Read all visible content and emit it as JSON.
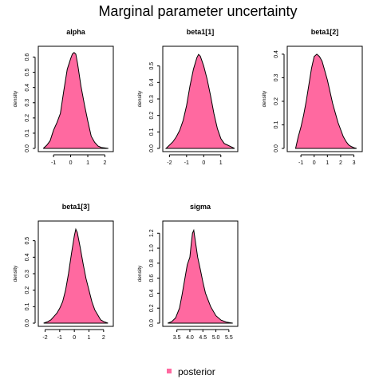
{
  "title": "Marginal parameter uncertainty",
  "legend": {
    "label": "posterior",
    "color": "#FF69A0"
  },
  "chart_data": [
    {
      "type": "area",
      "title": "alpha",
      "ylabel": "density",
      "xlim": [
        -1.75,
        2.35
      ],
      "ylim": [
        0,
        0.65
      ],
      "xticks": [
        -1,
        0,
        1,
        2
      ],
      "xtick_labels": [
        "-1",
        "0",
        "1",
        "2"
      ],
      "yticks": [
        0,
        0.1,
        0.2,
        0.3,
        0.4,
        0.5,
        0.6
      ],
      "ytick_labels": [
        "0.0",
        "0.1",
        "0.2",
        "0.3",
        "0.4",
        "0.5",
        "0.6"
      ],
      "x": [
        -1.6,
        -1.4,
        -1.2,
        -1.0,
        -0.8,
        -0.6,
        -0.4,
        -0.2,
        0.0,
        0.1,
        0.2,
        0.3,
        0.4,
        0.6,
        0.8,
        1.0,
        1.2,
        1.4,
        1.6,
        1.8,
        2.0,
        2.2
      ],
      "y": [
        0.0,
        0.02,
        0.05,
        0.12,
        0.17,
        0.23,
        0.38,
        0.52,
        0.59,
        0.62,
        0.63,
        0.62,
        0.56,
        0.41,
        0.29,
        0.18,
        0.08,
        0.04,
        0.015,
        0.006,
        0.003,
        0.0
      ]
    },
    {
      "type": "area",
      "title": "beta1[1]",
      "ylabel": "density",
      "xlim": [
        -2.25,
        1.85
      ],
      "ylim": [
        0,
        0.6
      ],
      "xticks": [
        -2,
        -1,
        0,
        1
      ],
      "xtick_labels": [
        "-2",
        "-1",
        "0",
        "1"
      ],
      "yticks": [
        0,
        0.1,
        0.2,
        0.3,
        0.4,
        0.5
      ],
      "ytick_labels": [
        "0.0",
        "0.1",
        "0.2",
        "0.3",
        "0.4",
        "0.5"
      ],
      "x": [
        -2.2,
        -2.0,
        -1.8,
        -1.6,
        -1.4,
        -1.2,
        -1.0,
        -0.8,
        -0.6,
        -0.4,
        -0.3,
        -0.2,
        -0.1,
        0.0,
        0.2,
        0.4,
        0.6,
        0.8,
        1.0,
        1.2,
        1.4,
        1.6,
        1.8
      ],
      "y": [
        0.0,
        0.02,
        0.04,
        0.07,
        0.11,
        0.17,
        0.26,
        0.38,
        0.48,
        0.55,
        0.57,
        0.56,
        0.53,
        0.5,
        0.42,
        0.32,
        0.21,
        0.12,
        0.06,
        0.03,
        0.02,
        0.01,
        0.0
      ]
    },
    {
      "type": "area",
      "title": "beta1[2]",
      "ylabel": "density",
      "xlim": [
        -1.85,
        3.45
      ],
      "ylim": [
        0,
        0.42
      ],
      "xticks": [
        -1,
        0,
        1,
        2,
        3
      ],
      "xtick_labels": [
        "-1",
        "0",
        "1",
        "2",
        "3"
      ],
      "yticks": [
        0,
        0.1,
        0.2,
        0.3,
        0.4
      ],
      "ytick_labels": [
        "0.0",
        "0.1",
        "0.2",
        "0.3",
        "0.4"
      ],
      "x": [
        -1.4,
        -1.2,
        -1.0,
        -0.8,
        -0.6,
        -0.4,
        -0.2,
        0.0,
        0.2,
        0.4,
        0.6,
        0.8,
        1.0,
        1.2,
        1.4,
        1.6,
        1.8,
        2.0,
        2.2,
        2.4,
        2.6,
        2.8,
        3.0,
        3.2
      ],
      "y": [
        0.0,
        0.05,
        0.09,
        0.14,
        0.2,
        0.27,
        0.34,
        0.39,
        0.4,
        0.39,
        0.37,
        0.33,
        0.29,
        0.24,
        0.19,
        0.15,
        0.11,
        0.08,
        0.05,
        0.03,
        0.015,
        0.008,
        0.003,
        0.0
      ]
    },
    {
      "type": "area",
      "title": "beta1[3]",
      "ylabel": "density",
      "xlim": [
        -2.3,
        2.5
      ],
      "ylim": [
        0,
        0.6
      ],
      "xticks": [
        -2,
        -1,
        0,
        1,
        2
      ],
      "xtick_labels": [
        "-2",
        "-1",
        "0",
        "1",
        "2"
      ],
      "yticks": [
        0,
        0.1,
        0.2,
        0.3,
        0.4,
        0.5
      ],
      "ytick_labels": [
        "0.0",
        "0.1",
        "0.2",
        "0.3",
        "0.4",
        "0.5"
      ],
      "x": [
        -2.1,
        -1.8,
        -1.6,
        -1.4,
        -1.2,
        -1.0,
        -0.8,
        -0.6,
        -0.4,
        -0.2,
        0.0,
        0.1,
        0.2,
        0.4,
        0.6,
        0.8,
        1.0,
        1.2,
        1.4,
        1.6,
        1.8,
        2.0,
        2.3
      ],
      "y": [
        0.0,
        0.01,
        0.02,
        0.04,
        0.06,
        0.09,
        0.13,
        0.2,
        0.3,
        0.42,
        0.53,
        0.57,
        0.55,
        0.46,
        0.36,
        0.27,
        0.2,
        0.13,
        0.08,
        0.05,
        0.02,
        0.01,
        0.0
      ]
    },
    {
      "type": "area",
      "title": "sigma",
      "ylabel": "density",
      "xlim": [
        3.05,
        5.75
      ],
      "ylim": [
        0,
        1.32
      ],
      "xticks": [
        3.5,
        4.0,
        4.5,
        5.0,
        5.5
      ],
      "xtick_labels": [
        "3.5",
        "4.0",
        "4.5",
        "5.0",
        "5.5"
      ],
      "yticks": [
        0,
        0.2,
        0.4,
        0.6,
        0.8,
        1.0,
        1.2
      ],
      "ytick_labels": [
        "0.0",
        "0.2",
        "0.4",
        "0.6",
        "0.8",
        "1.0",
        "1.2"
      ],
      "x": [
        3.15,
        3.3,
        3.45,
        3.6,
        3.7,
        3.8,
        3.9,
        4.0,
        4.05,
        4.1,
        4.15,
        4.2,
        4.3,
        4.4,
        4.5,
        4.6,
        4.8,
        5.0,
        5.2,
        5.4,
        5.65
      ],
      "y": [
        0.0,
        0.02,
        0.07,
        0.2,
        0.38,
        0.58,
        0.78,
        0.88,
        1.05,
        1.2,
        1.24,
        1.12,
        0.88,
        0.72,
        0.55,
        0.4,
        0.22,
        0.1,
        0.04,
        0.015,
        0.0
      ]
    }
  ]
}
